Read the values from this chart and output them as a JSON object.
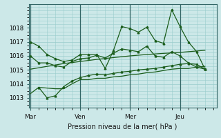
{
  "background_color": "#cce8e8",
  "grid_color": "#99cccc",
  "line_color": "#1a5c1a",
  "marker_color": "#1a5c1a",
  "xlabel": "Pression niveau de la mer( hPa )",
  "ylim": [
    1012.3,
    1019.7
  ],
  "xlim": [
    -0.1,
    11.2
  ],
  "yticks": [
    1013,
    1014,
    1015,
    1016,
    1017,
    1018
  ],
  "day_labels": [
    "Mar",
    "Ven",
    "Mer",
    "Jeu"
  ],
  "day_positions": [
    0,
    3.0,
    6.0,
    9.0
  ],
  "vline_positions": [
    0,
    3.0,
    6.0,
    9.0
  ],
  "series1_x": [
    0,
    0.5,
    1.0,
    1.5,
    2.0,
    2.5,
    3.0,
    3.5,
    4.0,
    4.5,
    5.0,
    5.5,
    6.0,
    6.5,
    7.0,
    7.5,
    8.0,
    8.5,
    9.0,
    9.5,
    10.0,
    10.5
  ],
  "series1_y": [
    1017.0,
    1016.7,
    1016.1,
    1015.8,
    1015.6,
    1015.7,
    1016.1,
    1016.1,
    1016.1,
    1015.1,
    1016.4,
    1018.1,
    1017.95,
    1017.7,
    1018.05,
    1017.1,
    1016.9,
    1019.3,
    1018.1,
    1017.0,
    1016.3,
    1015.05
  ],
  "series2_x": [
    0,
    0.5,
    1.0,
    1.5,
    2.0,
    2.5,
    3.0,
    3.5,
    4.0,
    4.5,
    5.0,
    5.5,
    6.0,
    6.5,
    7.0,
    7.5,
    8.0,
    8.5,
    9.0,
    9.5,
    10.0,
    10.5
  ],
  "series2_y": [
    1016.0,
    1015.5,
    1015.5,
    1015.3,
    1015.2,
    1015.6,
    1015.8,
    1015.85,
    1016.05,
    1015.85,
    1016.2,
    1016.5,
    1016.4,
    1016.3,
    1016.7,
    1016.0,
    1015.9,
    1016.3,
    1016.0,
    1015.5,
    1015.2,
    1015.05
  ],
  "series3_x": [
    0,
    1.0,
    2.0,
    3.0,
    4.0,
    5.0,
    6.0,
    7.0,
    8.0,
    9.0,
    10.0,
    10.5
  ],
  "series3_y": [
    1015.05,
    1015.25,
    1015.45,
    1015.6,
    1015.75,
    1015.88,
    1016.0,
    1016.1,
    1016.18,
    1016.25,
    1016.35,
    1016.4
  ],
  "series4_x": [
    0,
    0.5,
    1.0,
    1.5,
    2.0,
    2.5,
    3.0,
    3.5,
    4.0,
    4.5,
    5.0,
    5.5,
    6.0,
    6.5,
    7.0,
    7.5,
    8.0,
    8.5,
    9.0,
    9.5,
    10.0,
    10.5
  ],
  "series4_y": [
    1013.3,
    1013.75,
    1013.7,
    1013.65,
    1013.65,
    1014.0,
    1014.3,
    1014.3,
    1014.4,
    1014.4,
    1014.5,
    1014.55,
    1014.65,
    1014.7,
    1014.8,
    1014.85,
    1014.95,
    1015.05,
    1015.1,
    1015.1,
    1015.2,
    1015.25
  ],
  "series5_x": [
    0.5,
    1.0,
    1.5,
    2.0,
    2.5,
    3.0,
    3.5,
    4.0,
    4.5,
    5.0,
    5.5,
    6.0,
    6.5,
    7.0,
    7.5,
    8.0,
    8.5,
    9.0,
    9.5,
    10.0,
    10.5
  ],
  "series5_y": [
    1013.75,
    1013.0,
    1013.15,
    1013.8,
    1014.2,
    1014.45,
    1014.6,
    1014.7,
    1014.65,
    1014.75,
    1014.85,
    1014.9,
    1015.0,
    1015.05,
    1015.1,
    1015.2,
    1015.3,
    1015.4,
    1015.45,
    1015.4,
    1015.05
  ]
}
